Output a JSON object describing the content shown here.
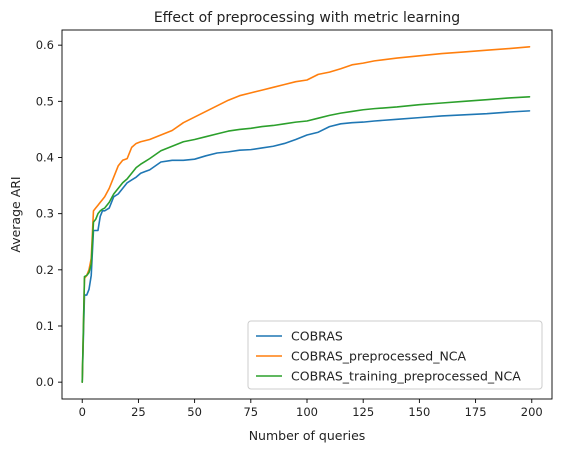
{
  "chart_data": {
    "type": "line",
    "title": "Effect of preprocessing with metric learning",
    "xlabel": "Number of queries",
    "ylabel": "Average ARI",
    "xlim": [
      -9,
      209
    ],
    "ylim": [
      -0.03,
      0.627
    ],
    "xticks": [
      0,
      25,
      50,
      75,
      100,
      125,
      150,
      175,
      200
    ],
    "xtick_labels": [
      "0",
      "25",
      "50",
      "75",
      "100",
      "125",
      "150",
      "175",
      "200"
    ],
    "yticks": [
      0.0,
      0.1,
      0.2,
      0.3,
      0.4,
      0.5,
      0.6
    ],
    "ytick_labels": [
      "0.0",
      "0.1",
      "0.2",
      "0.3",
      "0.4",
      "0.5",
      "0.6"
    ],
    "grid": false,
    "legend_position": "bottom-right",
    "series": [
      {
        "name": "COBRAS",
        "color": "#1f77b4",
        "x": [
          0,
          1,
          2,
          3,
          4,
          5,
          6,
          7,
          8,
          9,
          10,
          12,
          14,
          16,
          18,
          20,
          22,
          24,
          26,
          28,
          30,
          35,
          40,
          45,
          50,
          55,
          60,
          65,
          70,
          75,
          80,
          85,
          90,
          95,
          100,
          105,
          110,
          115,
          120,
          125,
          130,
          140,
          150,
          160,
          170,
          180,
          190,
          199
        ],
        "y": [
          0.0,
          0.155,
          0.155,
          0.165,
          0.19,
          0.27,
          0.27,
          0.27,
          0.295,
          0.305,
          0.305,
          0.31,
          0.33,
          0.335,
          0.345,
          0.355,
          0.36,
          0.365,
          0.372,
          0.375,
          0.378,
          0.392,
          0.395,
          0.395,
          0.397,
          0.403,
          0.408,
          0.41,
          0.413,
          0.414,
          0.417,
          0.42,
          0.425,
          0.432,
          0.44,
          0.445,
          0.455,
          0.46,
          0.462,
          0.463,
          0.465,
          0.468,
          0.471,
          0.474,
          0.476,
          0.478,
          0.481,
          0.483
        ]
      },
      {
        "name": "COBRAS_preprocessed_NCA",
        "color": "#ff7f0e",
        "x": [
          0,
          1,
          2,
          3,
          4,
          5,
          6,
          7,
          8,
          9,
          10,
          12,
          14,
          16,
          18,
          20,
          22,
          24,
          26,
          28,
          30,
          35,
          40,
          45,
          50,
          55,
          60,
          65,
          70,
          75,
          80,
          85,
          90,
          95,
          100,
          105,
          110,
          115,
          120,
          125,
          130,
          140,
          150,
          160,
          170,
          180,
          190,
          199
        ],
        "y": [
          0.0,
          0.185,
          0.19,
          0.2,
          0.22,
          0.305,
          0.31,
          0.315,
          0.32,
          0.325,
          0.33,
          0.345,
          0.365,
          0.385,
          0.395,
          0.398,
          0.418,
          0.425,
          0.428,
          0.43,
          0.432,
          0.44,
          0.448,
          0.462,
          0.472,
          0.482,
          0.492,
          0.502,
          0.51,
          0.515,
          0.52,
          0.525,
          0.53,
          0.535,
          0.538,
          0.548,
          0.552,
          0.558,
          0.565,
          0.568,
          0.572,
          0.577,
          0.581,
          0.585,
          0.588,
          0.591,
          0.594,
          0.597
        ]
      },
      {
        "name": "COBRAS_training_preprocessed_NCA",
        "color": "#2ca02c",
        "x": [
          0,
          1,
          2,
          3,
          4,
          5,
          6,
          7,
          8,
          9,
          10,
          12,
          14,
          16,
          18,
          20,
          22,
          24,
          26,
          28,
          30,
          35,
          40,
          45,
          50,
          55,
          60,
          65,
          70,
          75,
          80,
          85,
          90,
          95,
          100,
          105,
          110,
          115,
          120,
          125,
          130,
          140,
          150,
          160,
          170,
          180,
          190,
          199
        ],
        "y": [
          0.0,
          0.188,
          0.19,
          0.195,
          0.21,
          0.285,
          0.29,
          0.3,
          0.305,
          0.308,
          0.31,
          0.32,
          0.335,
          0.345,
          0.355,
          0.362,
          0.372,
          0.382,
          0.388,
          0.393,
          0.398,
          0.412,
          0.42,
          0.428,
          0.432,
          0.437,
          0.442,
          0.447,
          0.45,
          0.452,
          0.455,
          0.457,
          0.46,
          0.463,
          0.465,
          0.47,
          0.475,
          0.479,
          0.482,
          0.485,
          0.487,
          0.49,
          0.494,
          0.497,
          0.5,
          0.503,
          0.506,
          0.508
        ]
      }
    ]
  }
}
